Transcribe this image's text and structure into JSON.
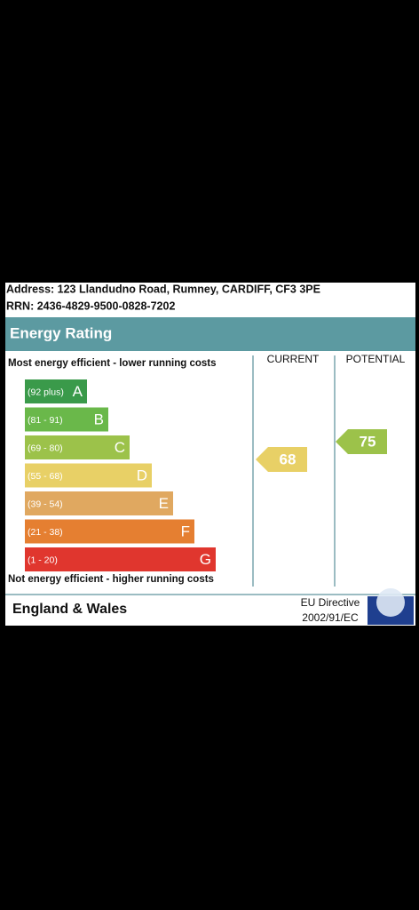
{
  "header": {
    "address": "Address: 123 Llandudno Road, Rumney, CARDIFF, CF3 3PE",
    "rrn": "RRN: 2436-4829-9500-0828-7202"
  },
  "title": "Energy Rating",
  "top_note": "Most energy efficient - lower running costs",
  "columns": [
    "CURRENT",
    "POTENTIAL"
  ],
  "bands": [
    {
      "range": "(92 plus)",
      "letter": "A"
    },
    {
      "range": "(81 - 91)",
      "letter": "B"
    },
    {
      "range": "(69 - 80)",
      "letter": "C"
    },
    {
      "range": "(55 - 68)",
      "letter": "D"
    },
    {
      "range": "(39 - 54)",
      "letter": "E"
    },
    {
      "range": "(21 - 38)",
      "letter": "F"
    },
    {
      "range": "(1 - 20)",
      "letter": "G"
    }
  ],
  "current": 68,
  "potential": 75,
  "bottom_note": "Not energy efficient - higher running costs",
  "footer": {
    "region": "England & Wales",
    "directive": [
      "EU Directive",
      "2002/91/EC"
    ]
  }
}
